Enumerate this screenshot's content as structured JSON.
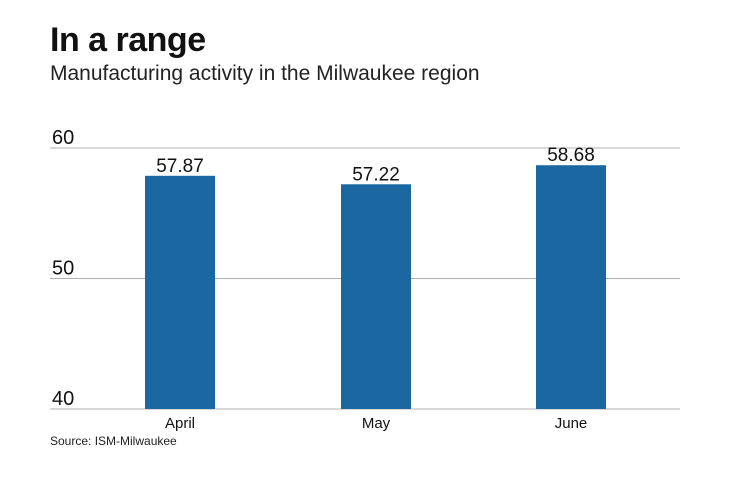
{
  "header": {
    "title": "In a range",
    "subtitle": "Manufacturing activity in the Milwaukee region"
  },
  "footer": {
    "source": "Source: ISM-Milwaukee"
  },
  "chart_data": {
    "type": "bar",
    "categories": [
      "April",
      "May",
      "June"
    ],
    "values": [
      57.87,
      57.22,
      58.68
    ],
    "value_labels": [
      "57.87",
      "57.22",
      "58.68"
    ],
    "title": "In a range",
    "subtitle": "Manufacturing activity in the Milwaukee region",
    "xlabel": "",
    "ylabel": "",
    "ylim": [
      40,
      60
    ],
    "yticks": [
      40,
      50,
      60
    ],
    "ytick_labels": [
      "40",
      "50",
      "60"
    ],
    "grid": true,
    "legend": "none",
    "bar_color": "#1b67a1",
    "grid_color": "#b0b0b0",
    "text_color": "#111111"
  }
}
